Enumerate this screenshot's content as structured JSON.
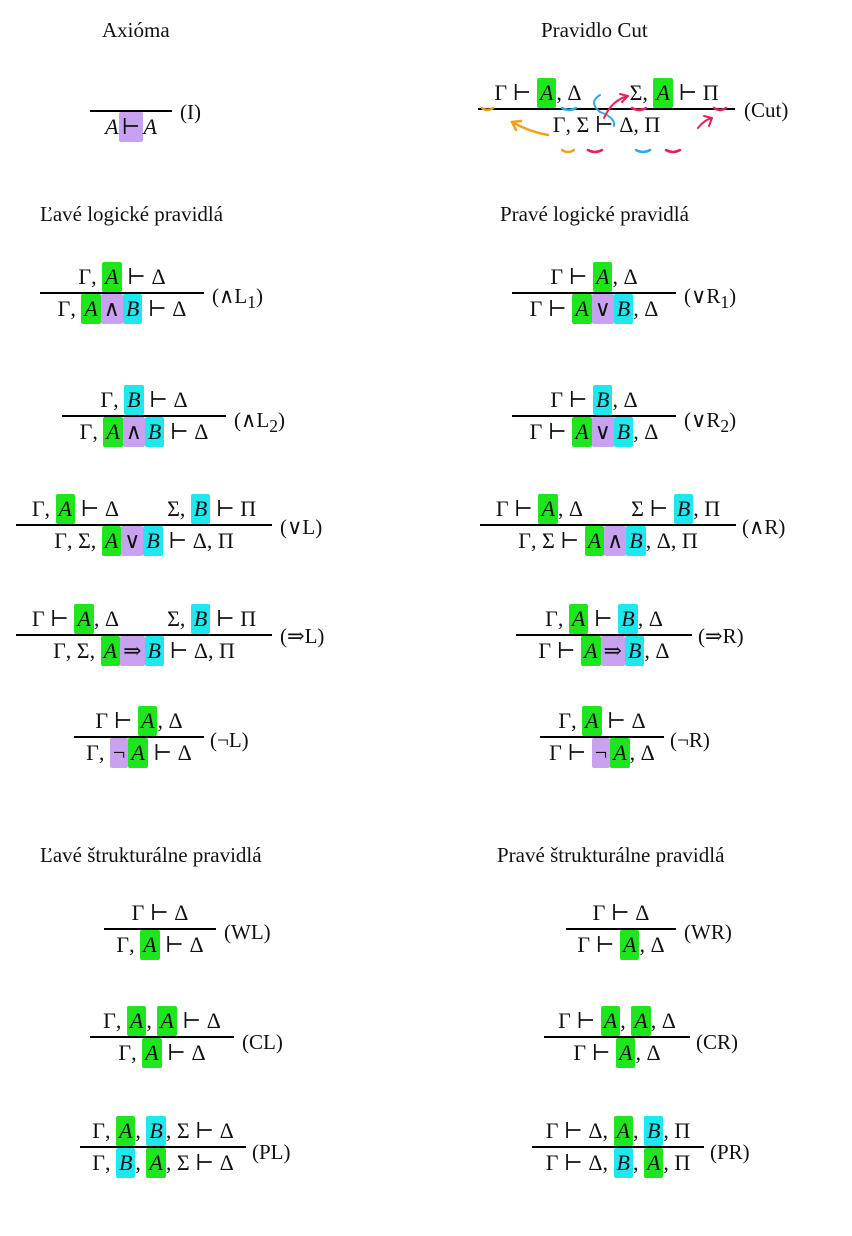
{
  "headings": {
    "axiom": "Axióma",
    "cut": "Pravidlo Cut",
    "left_logical": "Ľavé logické pravidlá",
    "right_logical": "Pravé logické pravidlá",
    "left_structural": "Ľavé štrukturálne pravidlá",
    "right_structural": "Pravé štrukturálne pravidlá"
  },
  "rule_labels": {
    "I": "(I)",
    "Cut": "(Cut)",
    "andL1": "(∧L",
    "andL2": "(∧L",
    "orL": "(∨L)",
    "impL": "(⇒L)",
    "negL": "(¬L)",
    "orR1": "(∨R",
    "orR2": "(∨R",
    "andR": "(∧R)",
    "impR": "(⇒R)",
    "negR": "(¬R)",
    "WL": "(WL)",
    "CL": "(CL)",
    "PL": "(PL)",
    "WR": "(WR)",
    "CR": "(CR)",
    "PR": "(PR)"
  },
  "subscripts": {
    "one": "1",
    "two": "2"
  },
  "symbols": {
    "Gamma": "Γ",
    "Delta": "Δ",
    "Sigma": "Σ",
    "Pi": "Π",
    "turnstile": "⊢",
    "and": "∧",
    "or": "∨",
    "implies": "⇒",
    "neg": "¬",
    "A": "A",
    "B": "B"
  },
  "highlight_colors": {
    "green": "#1ee51e",
    "cyan": "#1ee8ee",
    "purple": "#c8a2f0",
    "annotation_orange": "#f0a020",
    "annotation_blue": "#30a8f0",
    "annotation_red": "#e8205a"
  }
}
